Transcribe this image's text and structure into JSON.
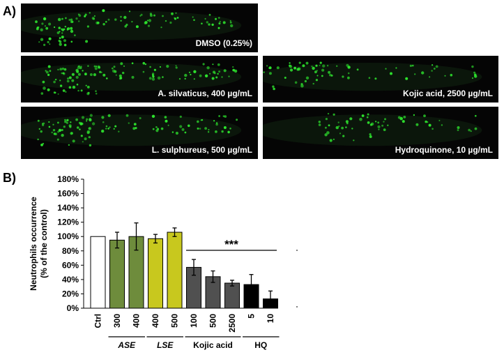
{
  "panel_a": {
    "label": "A)",
    "images": [
      {
        "caption": "DMSO (0.25%)"
      },
      {
        "caption": "A. silvaticus, 400 µg/mL"
      },
      {
        "caption": "Kojic acid, 2500 µg/mL"
      },
      {
        "caption": "L. sulphureus, 500 µg/mL"
      },
      {
        "caption": "Hydroquinone,  10 µg/mL"
      }
    ]
  },
  "panel_b": {
    "label": "B)"
  },
  "colors": {
    "fluorescence": "#2ee62e",
    "ctrl": "#ffffff",
    "ase": "#6e8c3c",
    "lse": "#c8c81e",
    "kojic": "#505050",
    "hq": "#000000"
  },
  "chart_data": {
    "type": "bar",
    "ylabel": "Neutrophils occurrence\n(% of the control)",
    "ylim": [
      0,
      180
    ],
    "yticks": [
      "0%",
      "20%",
      "40%",
      "60%",
      "80%",
      "100%",
      "120%",
      "140%",
      "160%",
      "180%"
    ],
    "categories": [
      "Ctrl",
      "300",
      "400",
      "400",
      "500",
      "100",
      "500",
      "2500",
      "5",
      "10"
    ],
    "values": [
      100,
      95,
      100,
      97,
      106,
      57,
      44,
      35,
      33,
      13
    ],
    "errors": [
      0,
      11,
      19,
      6,
      6,
      11,
      8,
      4,
      14,
      11
    ],
    "groups": [
      {
        "label": "ASE",
        "italic": true
      },
      {
        "label": "LSE",
        "italic": true
      },
      {
        "label": "Kojic acid",
        "italic": false
      },
      {
        "label": "HQ",
        "italic": false
      }
    ],
    "significance": "***"
  }
}
